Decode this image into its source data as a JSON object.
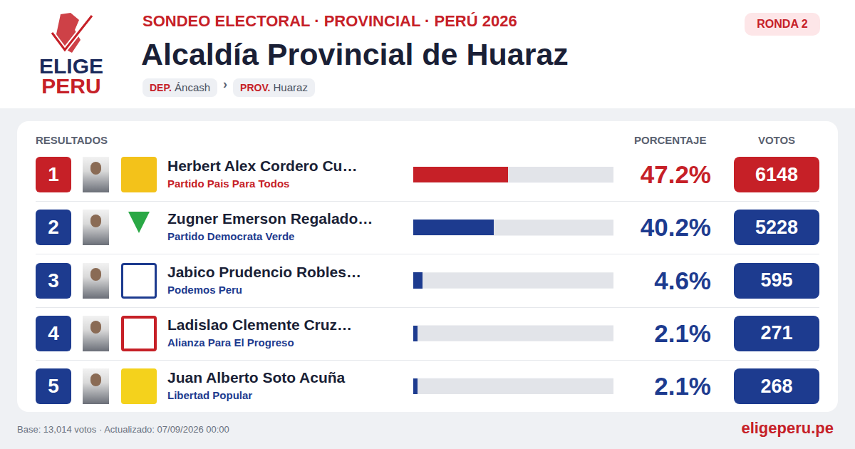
{
  "header": {
    "logo": [
      "ELIGE",
      "PERU"
    ],
    "kicker": "SONDEO ELECTORAL · PROVINCIAL · PERÚ 2026",
    "title": "Alcaldía Provincial de Huaraz",
    "badge": "RONDA 2",
    "breadcrumb": [
      {
        "label": "DEP.",
        "value": "Áncash"
      },
      {
        "label": "PROV.",
        "value": "Huaraz"
      }
    ],
    "separator": "›"
  },
  "table_header": [
    "RESULTADOS",
    "PORCENTAJE",
    "VOTOS"
  ],
  "chart_data": {
    "type": "bar",
    "orientation": "horizontal",
    "ranks": [
      1,
      2,
      3,
      4,
      5
    ],
    "categories": [
      "Herbert Alex Cordero Cu…",
      "Zugner Emerson Regalado…",
      "Jabico Prudencio Robles…",
      "Ladislao Clemente Cruz…",
      "Juan Alberto Soto Acuña"
    ],
    "parties": [
      "Partido Pais Para Todos",
      "Partido Democrata Verde",
      "Podemos Peru",
      "Alianza Para El Progreso",
      "Libertad Popular"
    ],
    "values": [
      47.2,
      40.2,
      4.6,
      2.1,
      2.1
    ],
    "value_labels": [
      "47.2%",
      "40.2%",
      "4.6%",
      "2.1%",
      "2.1%"
    ],
    "votes": [
      6148,
      5228,
      595,
      271,
      268
    ],
    "colors": [
      "#c62027",
      "#1d3b8f",
      "#1d3b8f",
      "#1d3b8f",
      "#1d3b8f"
    ],
    "xlim": [
      0,
      100
    ],
    "tick_labels": false
  },
  "footer": {
    "note": "Base: 13,014 votos · Actualizado: 07/09/2026 00:00",
    "site": "eligeperu.pe"
  }
}
